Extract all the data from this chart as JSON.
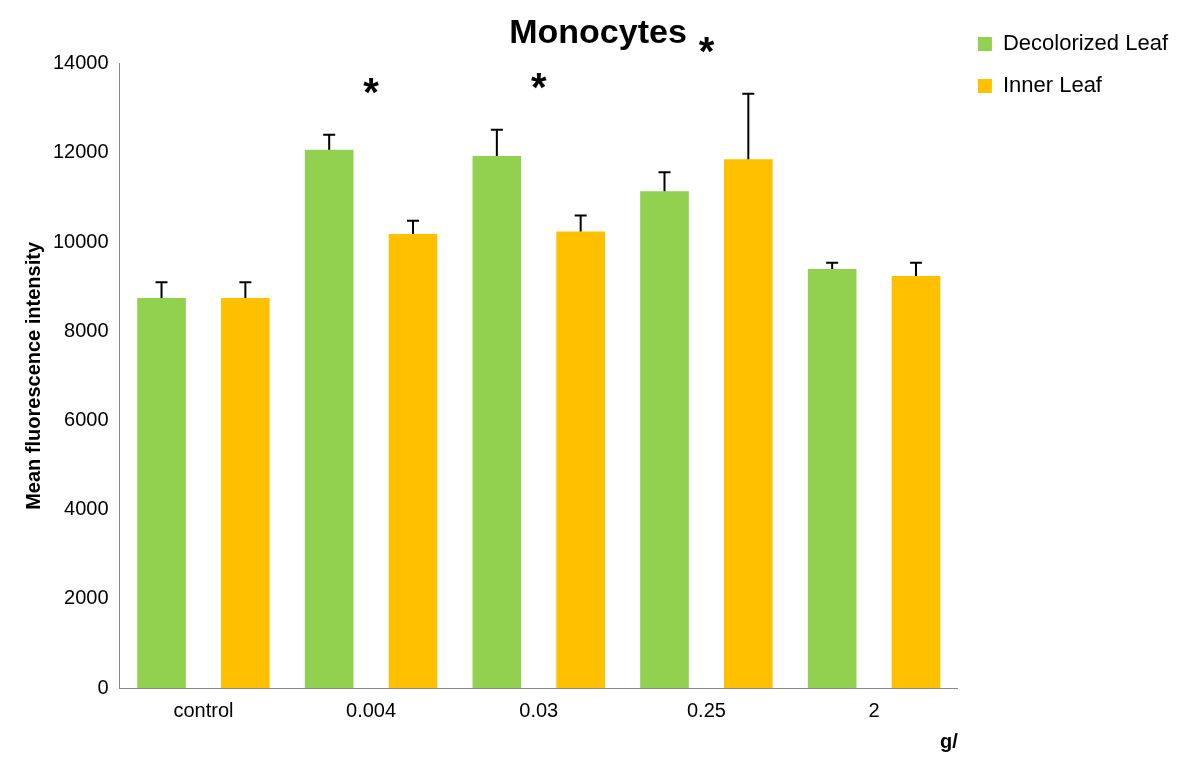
{
  "chart_data": {
    "type": "bar",
    "title": "Monocytes",
    "ylabel": "Mean fluorescence intensity",
    "xlabel": "g/",
    "categories": [
      "control",
      "0.004",
      "0.03",
      "0.25",
      "2"
    ],
    "series": [
      {
        "name": "Decolorized Leaf",
        "color": "#92d050",
        "values": [
          8750,
          12070,
          11930,
          11140,
          9400
        ],
        "errors": [
          [
            8750,
            9100
          ],
          [
            12070,
            12410
          ],
          [
            11930,
            12520
          ],
          [
            11140,
            11570
          ],
          [
            9400,
            9540
          ]
        ]
      },
      {
        "name": "Inner Leaf",
        "color": "#ffc000",
        "values": [
          8750,
          10180,
          10240,
          11860,
          9240
        ],
        "errors": [
          [
            8750,
            9100
          ],
          [
            10180,
            10480
          ],
          [
            10240,
            10600
          ],
          [
            11860,
            13330
          ],
          [
            9240,
            9540
          ]
        ]
      }
    ],
    "ylim": [
      0,
      14000
    ],
    "yticks": [
      0,
      2000,
      4000,
      6000,
      8000,
      10000,
      12000,
      14000
    ],
    "grid": false,
    "legend": "top right",
    "annotations": [
      "*",
      "*",
      "*"
    ]
  }
}
